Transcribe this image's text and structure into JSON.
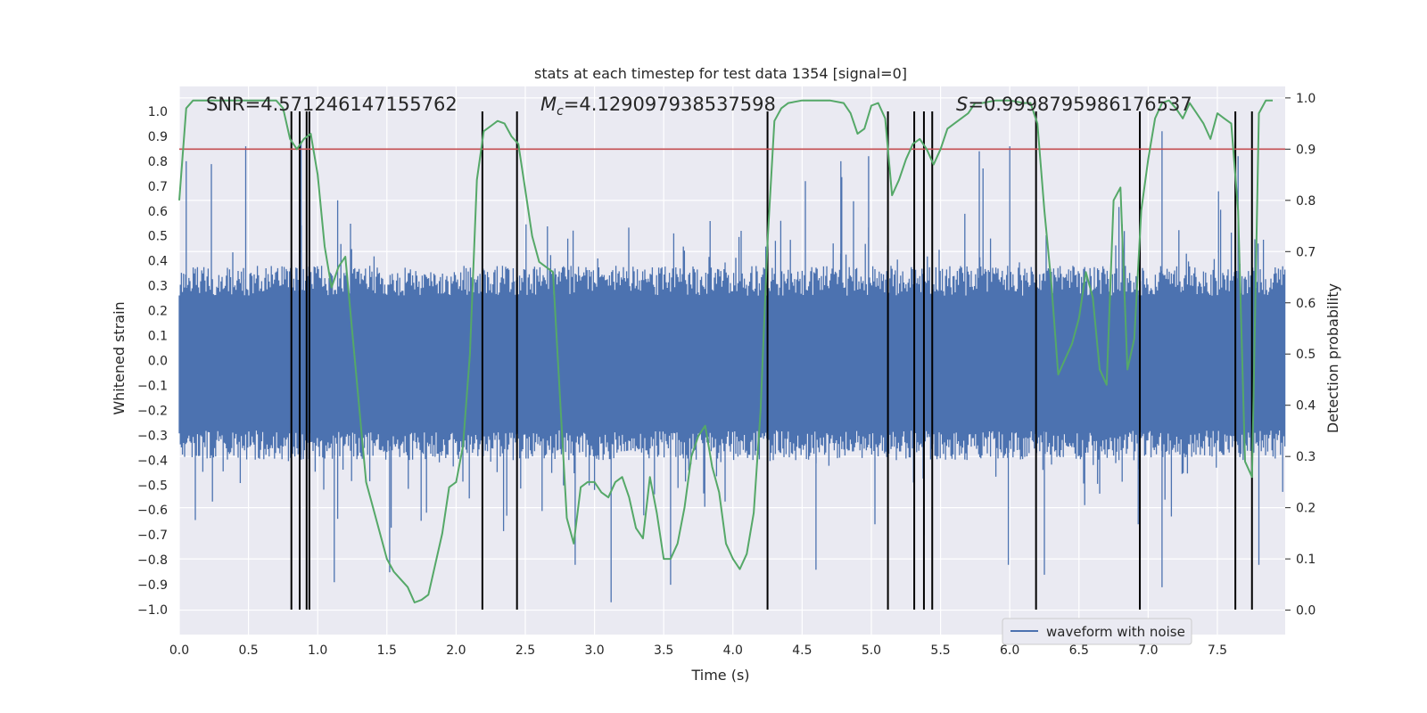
{
  "chart_data": {
    "type": "line",
    "title": "stats at each timestep for test data 1354 [signal=0]",
    "xlabel": "Time (s)",
    "ylabel": "Whitened strain",
    "y2label": "Detection probability",
    "xlim": [
      0.0,
      7.99
    ],
    "ylim": [
      -1.1,
      1.1
    ],
    "y2lim": [
      -0.0477,
      1.0224
    ],
    "x_ticks": [
      "0.0",
      "0.5",
      "1.0",
      "1.5",
      "2.0",
      "2.5",
      "3.0",
      "3.5",
      "4.0",
      "4.5",
      "5.0",
      "5.5",
      "6.0",
      "6.5",
      "7.0",
      "7.5"
    ],
    "y_ticks": [
      "1.0",
      "0.9",
      "0.8",
      "0.7",
      "0.6",
      "0.5",
      "0.4",
      "0.3",
      "0.2",
      "0.1",
      "0.0",
      "−0.1",
      "−0.2",
      "−0.3",
      "−0.4",
      "−0.5",
      "−0.6",
      "−0.7",
      "−0.8",
      "−0.9",
      "−1.0"
    ],
    "y2_ticks": [
      "1.0",
      "0.9",
      "0.8",
      "0.7",
      "0.6",
      "0.5",
      "0.4",
      "0.3",
      "0.2",
      "0.1",
      "0.0"
    ],
    "annotations": {
      "snr": "SNR=4.571246147155762",
      "mc_symbol": "M",
      "mc_sub": "c",
      "mc_value": "=4.129097938537598",
      "s_symbol": "S",
      "s_value": "=0.9998795986176537"
    },
    "legend": {
      "label": "waveform with noise",
      "placement": "bottom-right"
    },
    "threshold": {
      "axis": "right",
      "value": 0.9,
      "color": "#c44e52"
    },
    "event_lines": [
      0.81,
      0.87,
      0.92,
      0.94,
      2.19,
      2.44,
      4.25,
      5.12,
      5.31,
      5.38,
      5.44,
      6.19,
      6.94,
      7.63,
      7.75
    ],
    "event_line_range": [
      -1.0,
      1.0
    ],
    "waveform": {
      "name": "waveform with noise",
      "color": "#4c72b0",
      "band_positive": [
        0.26,
        0.38
      ],
      "band_negative": [
        -0.28,
        -0.4
      ],
      "spikes": [
        [
          0.05,
          0.8
        ],
        [
          0.48,
          0.86
        ],
        [
          0.88,
          0.88
        ],
        [
          1.12,
          -0.89
        ],
        [
          1.52,
          -0.85
        ],
        [
          2.86,
          -0.82
        ],
        [
          3.12,
          -0.97
        ],
        [
          3.55,
          -0.9
        ],
        [
          4.6,
          -0.84
        ],
        [
          4.78,
          0.8
        ],
        [
          4.98,
          0.82
        ],
        [
          5.78,
          0.84
        ],
        [
          5.99,
          -0.82
        ],
        [
          6.0,
          0.86
        ],
        [
          6.25,
          -0.86
        ],
        [
          7.1,
          0.92
        ],
        [
          7.1,
          -0.91
        ],
        [
          7.8,
          -0.82
        ],
        [
          7.65,
          0.82
        ]
      ]
    },
    "series": [
      {
        "name": "detection probability",
        "axis": "right",
        "color": "#55a868",
        "x": [
          0.0,
          0.05,
          0.1,
          0.2,
          0.4,
          0.55,
          0.7,
          0.75,
          0.8,
          0.85,
          0.9,
          0.95,
          1.0,
          1.05,
          1.1,
          1.15,
          1.2,
          1.35,
          1.4,
          1.5,
          1.55,
          1.6,
          1.65,
          1.7,
          1.75,
          1.8,
          1.85,
          1.9,
          1.95,
          2.0,
          2.05,
          2.1,
          2.15,
          2.2,
          2.25,
          2.3,
          2.35,
          2.4,
          2.45,
          2.5,
          2.55,
          2.6,
          2.7,
          2.8,
          2.85,
          2.9,
          2.95,
          3.0,
          3.05,
          3.1,
          3.15,
          3.2,
          3.25,
          3.3,
          3.35,
          3.4,
          3.45,
          3.5,
          3.55,
          3.6,
          3.65,
          3.7,
          3.75,
          3.8,
          3.85,
          3.9,
          3.95,
          4.0,
          4.05,
          4.1,
          4.15,
          4.2,
          4.25,
          4.3,
          4.35,
          4.4,
          4.5,
          4.6,
          4.7,
          4.8,
          4.85,
          4.9,
          4.95,
          5.0,
          5.05,
          5.1,
          5.15,
          5.2,
          5.25,
          5.3,
          5.35,
          5.4,
          5.45,
          5.5,
          5.55,
          5.6,
          5.7,
          5.75,
          5.8,
          5.9,
          6.0,
          6.1,
          6.15,
          6.2,
          6.25,
          6.3,
          6.35,
          6.4,
          6.45,
          6.5,
          6.55,
          6.6,
          6.65,
          6.7,
          6.75,
          6.8,
          6.85,
          6.9,
          6.95,
          7.0,
          7.05,
          7.1,
          7.15,
          7.2,
          7.25,
          7.3,
          7.35,
          7.4,
          7.45,
          7.5,
          7.55,
          7.6,
          7.65,
          7.7,
          7.75,
          7.8,
          7.85,
          7.9
        ],
        "y": [
          0.8,
          0.98,
          0.995,
          0.995,
          0.995,
          0.995,
          0.995,
          0.98,
          0.92,
          0.9,
          0.92,
          0.93,
          0.85,
          0.71,
          0.63,
          0.67,
          0.69,
          0.25,
          0.2,
          0.1,
          0.075,
          0.06,
          0.045,
          0.015,
          0.02,
          0.03,
          0.09,
          0.15,
          0.24,
          0.25,
          0.32,
          0.5,
          0.84,
          0.935,
          0.945,
          0.955,
          0.95,
          0.925,
          0.91,
          0.82,
          0.73,
          0.68,
          0.66,
          0.18,
          0.13,
          0.24,
          0.25,
          0.25,
          0.23,
          0.22,
          0.25,
          0.26,
          0.22,
          0.16,
          0.14,
          0.26,
          0.19,
          0.1,
          0.1,
          0.13,
          0.2,
          0.3,
          0.34,
          0.36,
          0.28,
          0.23,
          0.13,
          0.1,
          0.08,
          0.11,
          0.19,
          0.39,
          0.72,
          0.955,
          0.98,
          0.99,
          0.995,
          0.995,
          0.995,
          0.99,
          0.97,
          0.93,
          0.94,
          0.985,
          0.99,
          0.96,
          0.81,
          0.84,
          0.88,
          0.91,
          0.92,
          0.9,
          0.87,
          0.9,
          0.94,
          0.95,
          0.97,
          0.99,
          0.99,
          0.995,
          0.995,
          0.99,
          0.99,
          0.95,
          0.78,
          0.64,
          0.46,
          0.49,
          0.52,
          0.57,
          0.66,
          0.61,
          0.47,
          0.44,
          0.8,
          0.825,
          0.47,
          0.53,
          0.78,
          0.88,
          0.96,
          0.99,
          0.995,
          0.98,
          0.96,
          0.99,
          0.97,
          0.95,
          0.92,
          0.97,
          0.96,
          0.95,
          0.78,
          0.29,
          0.26,
          0.97,
          0.995,
          0.995
        ]
      }
    ]
  }
}
